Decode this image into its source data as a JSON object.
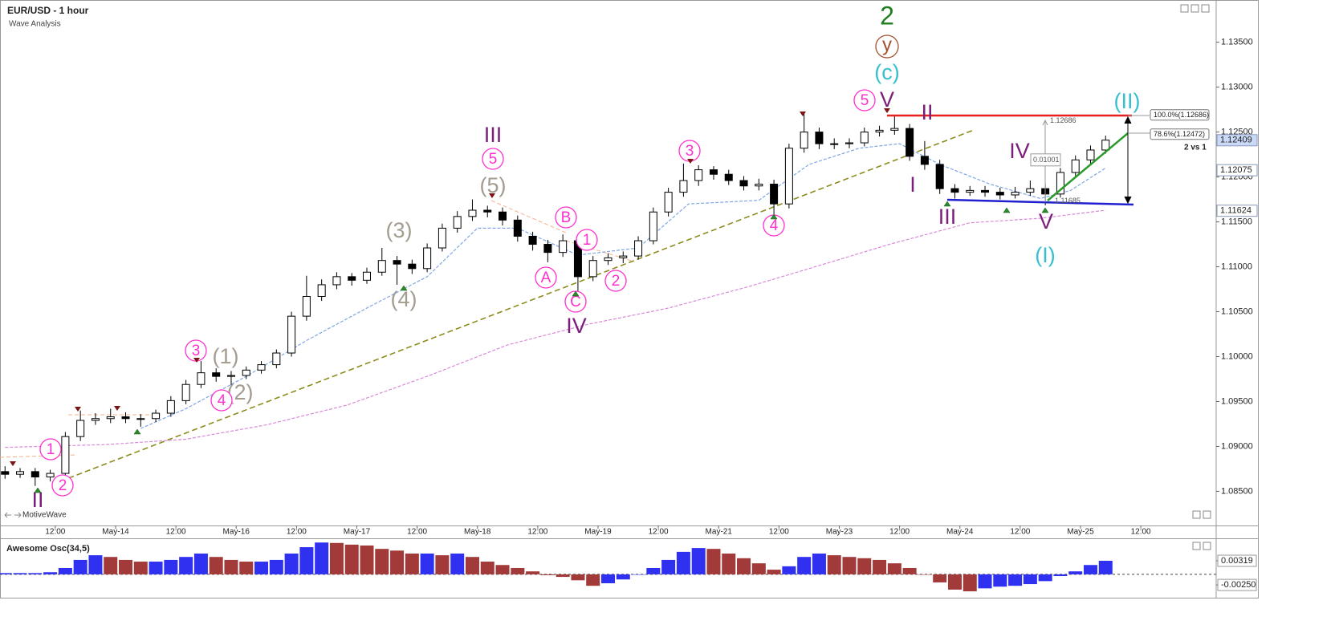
{
  "header": {
    "title": "EUR/USD - 1 hour",
    "subtitle": "Wave Analysis"
  },
  "watermark": "MotiveWave",
  "wave_labels": [
    "2",
    "V",
    "II",
    "(II)",
    "III",
    "(5)",
    "(3)",
    "(4)",
    "IV",
    "I",
    "III",
    "IV",
    "V",
    "(I)",
    "(1)",
    "(2)",
    "II",
    "(c)"
  ],
  "circled_labels": [
    "5",
    "5",
    "B",
    "1",
    "A",
    "C",
    "2",
    "3",
    "4",
    "3",
    "4",
    "1",
    "2"
  ],
  "circled_minor": "y",
  "ratio_note": "2 vs 1",
  "fib_levels": [
    {
      "value": 1.12686,
      "label": "100.0%(1.12686)"
    },
    {
      "value": 1.12472,
      "label": "78.6%(1.12472)"
    }
  ],
  "measure": {
    "high": 1.12686,
    "range": 0.01001,
    "low": 1.11685
  },
  "price_tags": [
    1.12409,
    1.12075,
    1.11624
  ],
  "chart_data": [
    {
      "type": "candlestick",
      "x": [
        0,
        3,
        6,
        9,
        12,
        15,
        18,
        21,
        24,
        27,
        30,
        33,
        36,
        39,
        42,
        45,
        48,
        51,
        54,
        57,
        60,
        63,
        66,
        69,
        72,
        75,
        78,
        81,
        84,
        87,
        90,
        93,
        96,
        99,
        102,
        105,
        108,
        111,
        114,
        117,
        120,
        123,
        126,
        129,
        132,
        135,
        138,
        141,
        144,
        147,
        150,
        153,
        156,
        159,
        162,
        165,
        168,
        171,
        174,
        177,
        180,
        183,
        186,
        189,
        192,
        195,
        198,
        201,
        204,
        207,
        210,
        213,
        216,
        219
      ],
      "open": [
        1.0872,
        1.0869,
        1.0872,
        1.0866,
        1.087,
        1.0911,
        1.0929,
        1.0931,
        1.0933,
        1.0931,
        1.0931,
        1.0937,
        1.0951,
        1.0969,
        1.0982,
        1.0978,
        1.0979,
        1.0985,
        1.0991,
        1.1004,
        1.1045,
        1.1067,
        1.108,
        1.1089,
        1.1085,
        1.1094,
        1.1107,
        1.1103,
        1.1098,
        1.1121,
        1.1143,
        1.1156,
        1.1163,
        1.1161,
        1.1152,
        1.1134,
        1.1125,
        1.1116,
        1.1129,
        1.1089,
        1.1107,
        1.111,
        1.1112,
        1.1129,
        1.1161,
        1.1183,
        1.1196,
        1.1208,
        1.1203,
        1.1196,
        1.119,
        1.1192,
        1.117,
        1.1232,
        1.125,
        1.1237,
        1.1237,
        1.1238,
        1.125,
        1.1252,
        1.1254,
        1.1223,
        1.1214,
        1.1187,
        1.1183,
        1.1185,
        1.1183,
        1.118,
        1.1183,
        1.1187,
        1.1181,
        1.1205,
        1.1219,
        1.123
      ],
      "high": [
        1.0878,
        1.0876,
        1.0876,
        1.0874,
        1.0916,
        1.094,
        1.0937,
        1.0942,
        1.0938,
        1.0936,
        1.0941,
        1.0956,
        1.0974,
        1.0995,
        1.0987,
        1.0984,
        1.0989,
        1.0995,
        1.1008,
        1.105,
        1.109,
        1.1086,
        1.1094,
        1.1093,
        1.1099,
        1.1121,
        1.1112,
        1.1108,
        1.1126,
        1.1148,
        1.1162,
        1.1175,
        1.1168,
        1.1166,
        1.1157,
        1.1139,
        1.113,
        1.1136,
        1.1134,
        1.1112,
        1.1115,
        1.1117,
        1.1134,
        1.1166,
        1.1188,
        1.1215,
        1.1213,
        1.1212,
        1.1208,
        1.1201,
        1.1198,
        1.1197,
        1.1237,
        1.1272,
        1.1255,
        1.1243,
        1.1243,
        1.1255,
        1.1257,
        1.12686,
        1.1259,
        1.124,
        1.1219,
        1.1192,
        1.119,
        1.119,
        1.1188,
        1.1189,
        1.1196,
        1.1192,
        1.121,
        1.1224,
        1.1235,
        1.1246
      ],
      "low": [
        1.0864,
        1.0865,
        1.0856,
        1.0861,
        1.0866,
        1.0906,
        1.0924,
        1.0926,
        1.0926,
        1.0922,
        1.0927,
        1.0933,
        1.0947,
        1.0965,
        1.0972,
        1.0968,
        1.0975,
        1.0981,
        1.0987,
        1.1,
        1.104,
        1.1062,
        1.1075,
        1.1079,
        1.1081,
        1.109,
        1.108,
        1.1092,
        1.1094,
        1.1117,
        1.1138,
        1.1151,
        1.1155,
        1.1146,
        1.1128,
        1.1118,
        1.1105,
        1.1111,
        1.1072,
        1.1084,
        1.1102,
        1.1104,
        1.1108,
        1.1125,
        1.1156,
        1.1178,
        1.119,
        1.1197,
        1.1191,
        1.1185,
        1.1185,
        1.1157,
        1.1165,
        1.1227,
        1.1231,
        1.1231,
        1.1232,
        1.1234,
        1.1245,
        1.1247,
        1.1218,
        1.1208,
        1.1181,
        1.1176,
        1.1179,
        1.1178,
        1.1175,
        1.1176,
        1.1179,
        1.11685,
        1.1177,
        1.12,
        1.1214,
        1.1226
      ],
      "close": [
        1.0869,
        1.0872,
        1.0866,
        1.087,
        1.0911,
        1.0929,
        1.0931,
        1.0933,
        1.0931,
        1.0931,
        1.0937,
        1.0951,
        1.0969,
        1.0982,
        1.0978,
        1.0979,
        1.0985,
        1.0991,
        1.1004,
        1.1045,
        1.1067,
        1.108,
        1.1089,
        1.1085,
        1.1094,
        1.1107,
        1.1103,
        1.1098,
        1.1121,
        1.1143,
        1.1156,
        1.1163,
        1.1161,
        1.1152,
        1.1134,
        1.1125,
        1.1116,
        1.1129,
        1.1089,
        1.1107,
        1.111,
        1.1112,
        1.1129,
        1.1161,
        1.1183,
        1.1196,
        1.1208,
        1.1203,
        1.1196,
        1.119,
        1.1192,
        1.117,
        1.1232,
        1.125,
        1.1237,
        1.1237,
        1.1238,
        1.125,
        1.1252,
        1.1254,
        1.1223,
        1.1214,
        1.1187,
        1.1183,
        1.1185,
        1.1183,
        1.118,
        1.1183,
        1.1187,
        1.1181,
        1.1205,
        1.1219,
        1.123,
        1.1241
      ],
      "up_color": "#ffffff",
      "down_color": "#000000",
      "moving_averages": [
        {
          "color": "#7ea6e6",
          "x": [
            27,
            36,
            48,
            60,
            72,
            84,
            94,
            102,
            114,
            126,
            136,
            150,
            160,
            170,
            178,
            186,
            196,
            206,
            212,
            219
          ],
          "values": [
            1.092,
            1.0942,
            1.0978,
            1.1018,
            1.1054,
            1.1089,
            1.1143,
            1.1143,
            1.1113,
            1.1121,
            1.117,
            1.1174,
            1.1214,
            1.1232,
            1.1237,
            1.1214,
            1.1192,
            1.1176,
            1.1185,
            1.121
          ]
        },
        {
          "color": "#d98ad9",
          "x": [
            0,
            20,
            36,
            52,
            68,
            84,
            100,
            116,
            132,
            148,
            160,
            176,
            192,
            206,
            219
          ],
          "values": [
            1.0899,
            1.0902,
            1.0908,
            1.0924,
            1.0946,
            1.0978,
            1.1013,
            1.1036,
            1.1054,
            1.1078,
            1.1098,
            1.1125,
            1.1149,
            1.1154,
            1.1163
          ]
        }
      ],
      "xlim": [
        -1,
        241
      ],
      "ylim": [
        1.0812,
        1.1397
      ],
      "xticks": [
        {
          "value": 10,
          "label": "12:00"
        },
        {
          "value": 22,
          "label": "May-14"
        },
        {
          "value": 34,
          "label": "12:00"
        },
        {
          "value": 46,
          "label": "May-16"
        },
        {
          "value": 58,
          "label": "12:00"
        },
        {
          "value": 70,
          "label": "May-17"
        },
        {
          "value": 82,
          "label": "12:00"
        },
        {
          "value": 94,
          "label": "May-18"
        },
        {
          "value": 106,
          "label": "12:00"
        },
        {
          "value": 118,
          "label": "May-19"
        },
        {
          "value": 130,
          "label": "12:00"
        },
        {
          "value": 142,
          "label": "May-21"
        },
        {
          "value": 154,
          "label": "12:00"
        },
        {
          "value": 166,
          "label": "May-23"
        },
        {
          "value": 178,
          "label": "12:00"
        },
        {
          "value": 190,
          "label": "May-24"
        },
        {
          "value": 202,
          "label": "12:00"
        },
        {
          "value": 214,
          "label": "May-25"
        },
        {
          "value": 226,
          "label": "12:00"
        }
      ],
      "yticks": [
        {
          "value": 1.085,
          "label": "1.08500"
        },
        {
          "value": 1.09,
          "label": "1.09000"
        },
        {
          "value": 1.095,
          "label": "1.09500"
        },
        {
          "value": 1.1,
          "label": "1.10000"
        },
        {
          "value": 1.105,
          "label": "1.10500"
        },
        {
          "value": 1.11,
          "label": "1.11000"
        },
        {
          "value": 1.115,
          "label": "1.11500"
        },
        {
          "value": 1.12,
          "label": "1.12000"
        },
        {
          "value": 1.125,
          "label": "1.12500"
        },
        {
          "value": 1.13,
          "label": "1.13000"
        },
        {
          "value": 1.135,
          "label": "1.13500"
        }
      ]
    },
    {
      "type": "bar",
      "title": "Awesome Osc(34,5)",
      "x": [
        0,
        3,
        6,
        9,
        12,
        15,
        18,
        21,
        24,
        27,
        30,
        33,
        36,
        39,
        42,
        45,
        48,
        51,
        54,
        57,
        60,
        63,
        66,
        69,
        72,
        75,
        78,
        81,
        84,
        87,
        90,
        93,
        96,
        99,
        102,
        105,
        108,
        111,
        114,
        117,
        120,
        123,
        126,
        129,
        132,
        135,
        138,
        141,
        144,
        147,
        150,
        153,
        156,
        159,
        162,
        165,
        168,
        171,
        174,
        177,
        180,
        183,
        186,
        189,
        192,
        195,
        198,
        201,
        204,
        207,
        210,
        213,
        216,
        219
      ],
      "values": [
        0.0003,
        0.0003,
        0.0003,
        0.0005,
        0.0015,
        0.0034,
        0.0045,
        0.0041,
        0.0034,
        0.003,
        0.003,
        0.0034,
        0.0041,
        0.0049,
        0.0041,
        0.0034,
        0.003,
        0.003,
        0.0034,
        0.0049,
        0.0064,
        0.0075,
        0.0074,
        0.007,
        0.0068,
        0.006,
        0.0056,
        0.0049,
        0.0049,
        0.0045,
        0.0049,
        0.0041,
        0.003,
        0.0022,
        0.0015,
        0.0007,
        -0.0002,
        -0.0006,
        -0.0014,
        -0.0027,
        -0.0021,
        -0.0012,
        -0.0001,
        0.0015,
        0.0034,
        0.0053,
        0.0062,
        0.006,
        0.0049,
        0.0038,
        0.0026,
        0.0011,
        0.0019,
        0.0041,
        0.0049,
        0.0045,
        0.0041,
        0.0038,
        0.0034,
        0.0026,
        0.0015,
        -0.0001,
        -0.0019,
        -0.0036,
        -0.004,
        -0.0033,
        -0.0029,
        -0.0027,
        -0.0023,
        -0.0016,
        -0.0004,
        0.0007,
        0.0022,
        0.0032
      ],
      "up_color": "#3030f0",
      "down_color": "#a33a3a",
      "ylim": [
        -0.0055,
        0.0083
      ],
      "yticks": [
        0.00319,
        {
          "value": -0.0025,
          "label": "-0.00250"
        }
      ]
    }
  ]
}
